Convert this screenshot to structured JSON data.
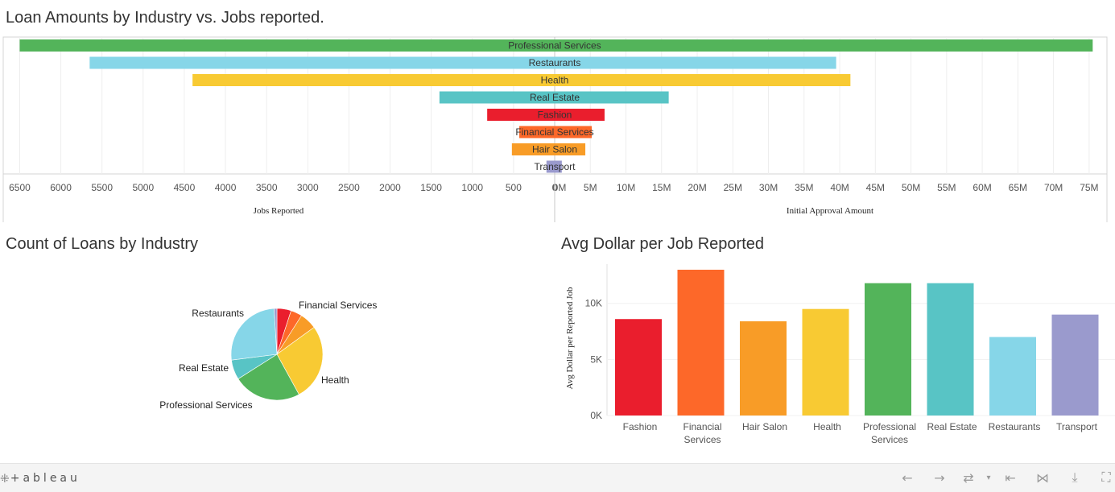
{
  "chart_data": [
    {
      "type": "bar",
      "orientation": "horizontal-diverging",
      "title": "Loan Amounts by Industry vs. Jobs reported.",
      "categories": [
        "Professional Services",
        "Restaurants",
        "Health",
        "Real Estate",
        "Fashion",
        "Financial Services",
        "Hair Salon",
        "Transport"
      ],
      "series": [
        {
          "name": "Jobs Reported",
          "values": [
            6500,
            5650,
            4400,
            1400,
            820,
            430,
            520,
            100
          ]
        },
        {
          "name": "Initial Approval Amount",
          "values": [
            75500000,
            39500000,
            41500000,
            16000000,
            7000000,
            5200000,
            4300000,
            1000000
          ]
        }
      ],
      "left_axis": {
        "label": "Jobs Reported",
        "range": [
          0,
          6700
        ],
        "ticks": [
          "6500",
          "6000",
          "5500",
          "5000",
          "4500",
          "4000",
          "3500",
          "3000",
          "2500",
          "2000",
          "1500",
          "1000",
          "500",
          "0"
        ],
        "tick_values": [
          6500,
          6000,
          5500,
          5000,
          4500,
          4000,
          3500,
          3000,
          2500,
          2000,
          1500,
          1000,
          500,
          0
        ]
      },
      "right_axis": {
        "label": "Initial Approval Amount",
        "range": [
          0,
          77500000
        ],
        "ticks": [
          "0M",
          "5M",
          "10M",
          "15M",
          "20M",
          "25M",
          "30M",
          "35M",
          "40M",
          "45M",
          "50M",
          "55M",
          "60M",
          "65M",
          "70M",
          "75M"
        ],
        "tick_values": [
          0,
          5000000,
          10000000,
          15000000,
          20000000,
          25000000,
          30000000,
          35000000,
          40000000,
          45000000,
          50000000,
          55000000,
          60000000,
          65000000,
          70000000,
          75000000
        ]
      },
      "grid": true,
      "colors": [
        "#53b45a",
        "#86d6e8",
        "#f8ca33",
        "#58c4c5",
        "#ea1e2d",
        "#fd6829",
        "#f89c27",
        "#9a9acd"
      ]
    },
    {
      "type": "pie",
      "title": "Count of Loans by Industry",
      "categories": [
        "Fashion",
        "Financial Services",
        "Hair Salon",
        "Health",
        "Professional Services",
        "Real Estate",
        "Restaurants",
        "Transport"
      ],
      "values": [
        5,
        4,
        6,
        27,
        24,
        7,
        26,
        1
      ],
      "colors": [
        "#ea1e2d",
        "#fd6829",
        "#f89c27",
        "#f8ca33",
        "#53b45a",
        "#58c4c5",
        "#86d6e8",
        "#9a9acd"
      ],
      "labels_shown": [
        "Restaurants",
        "Financial Services",
        "Real Estate",
        "Health",
        "Professional Services"
      ]
    },
    {
      "type": "bar",
      "title": "Avg Dollar per Job Reported",
      "categories": [
        "Fashion",
        "Financial Services",
        "Hair Salon",
        "Health",
        "Professional Services",
        "Real Estate",
        "Restaurants",
        "Transport"
      ],
      "category_lines": [
        [
          "Fashion"
        ],
        [
          "Financial",
          "Services"
        ],
        [
          "Hair Salon"
        ],
        [
          "Health"
        ],
        [
          "Professional",
          "Services"
        ],
        [
          "Real Estate"
        ],
        [
          "Restaurants"
        ],
        [
          "Transport"
        ]
      ],
      "values": [
        8600,
        13000,
        8400,
        9500,
        11800,
        11800,
        7000,
        9000
      ],
      "ylabel": "Avg Dollar per Reported Job",
      "ylim": [
        0,
        13500
      ],
      "yticks": [
        "0K",
        "5K",
        "10K"
      ],
      "ytick_values": [
        0,
        5000,
        10000
      ],
      "colors": [
        "#ea1e2d",
        "#fd6829",
        "#f89c27",
        "#f8ca33",
        "#53b45a",
        "#58c4c5",
        "#86d6e8",
        "#9a9acd"
      ]
    }
  ],
  "toolbar": {
    "brand": "+ableau",
    "icons": [
      "undo-icon",
      "redo-icon",
      "revert-icon",
      "dropdown-icon",
      "reset-icon",
      "share-icon",
      "download-icon",
      "fullscreen-icon"
    ]
  }
}
